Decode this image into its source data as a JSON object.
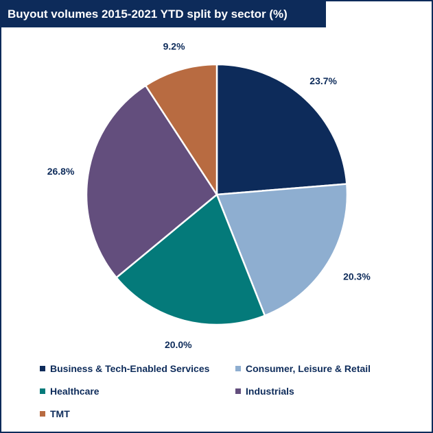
{
  "title": "Buyout volumes 2015-2021 YTD split by sector (%)",
  "chart_data": {
    "type": "pie",
    "title": "Buyout volumes 2015-2021 YTD split by sector (%)",
    "legend_position": "bottom",
    "categories": [
      "Business & Tech-Enabled Services",
      "Consumer, Leisure & Retail",
      "Healthcare",
      "Industrials",
      "TMT"
    ],
    "values": [
      23.7,
      20.3,
      20.0,
      26.8,
      9.2
    ],
    "labels": [
      "23.7%",
      "20.3%",
      "20.0%",
      "26.8%",
      "9.2%"
    ],
    "colors": [
      "#0d2b5a",
      "#8eaed0",
      "#047a7a",
      "#634e7d",
      "#b86b41"
    ]
  }
}
